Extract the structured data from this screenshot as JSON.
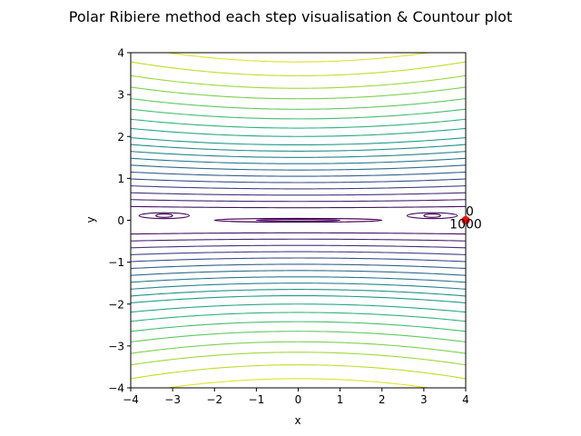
{
  "chart_data": {
    "type": "contour",
    "title": "Polar Ribiere method each step visualisation & Countour plot",
    "xlabel": "x",
    "ylabel": "y",
    "xlim": [
      -4,
      4
    ],
    "ylim": [
      -4,
      4
    ],
    "xticks": [
      {
        "value": -4,
        "label": "−4"
      },
      {
        "value": -3,
        "label": "−3"
      },
      {
        "value": -2,
        "label": "−2"
      },
      {
        "value": -1,
        "label": "−1"
      },
      {
        "value": 0,
        "label": "0"
      },
      {
        "value": 1,
        "label": "1"
      },
      {
        "value": 2,
        "label": "2"
      },
      {
        "value": 3,
        "label": "3"
      },
      {
        "value": 4,
        "label": "4"
      }
    ],
    "yticks": [
      {
        "value": -4,
        "label": "−4"
      },
      {
        "value": -3,
        "label": "−3"
      },
      {
        "value": -2,
        "label": "−2"
      },
      {
        "value": -1,
        "label": "−1"
      },
      {
        "value": 0,
        "label": "0"
      },
      {
        "value": 1,
        "label": "1"
      },
      {
        "value": 2,
        "label": "2"
      },
      {
        "value": 3,
        "label": "3"
      },
      {
        "value": 4,
        "label": "4"
      }
    ],
    "grid": false,
    "contour_levels": [
      0.3,
      0.45,
      0.6,
      0.75,
      0.9,
      1.05,
      1.2,
      1.35,
      1.5,
      1.65,
      1.8,
      2.0,
      2.2,
      2.42,
      2.65,
      2.9,
      3.15,
      3.45,
      3.78
    ],
    "contour_curvature": 0.006,
    "inner_ellipses": [
      {
        "cx": 0,
        "cy": 0,
        "rx": 1.0,
        "ry": 0.02,
        "level": 0
      },
      {
        "cx": 0,
        "cy": 0,
        "rx": 2.0,
        "ry": 0.045,
        "level": 0
      },
      {
        "cx": -3.2,
        "cy": 0.11,
        "rx": 0.2,
        "ry": 0.04,
        "level": 0
      },
      {
        "cx": -3.2,
        "cy": 0.11,
        "rx": 0.6,
        "ry": 0.07,
        "level": 1
      },
      {
        "cx": 3.2,
        "cy": 0.11,
        "rx": 0.2,
        "ry": 0.04,
        "level": 0
      },
      {
        "cx": 3.2,
        "cy": 0.11,
        "rx": 0.6,
        "ry": 0.07,
        "level": 1
      }
    ],
    "colormap": "viridis",
    "steps": [
      {
        "x": 4.0,
        "y": 0.0,
        "label": "0"
      },
      {
        "x": 4.0,
        "y": 0.0,
        "label": "1000"
      }
    ],
    "step_color": "#ff0000"
  }
}
